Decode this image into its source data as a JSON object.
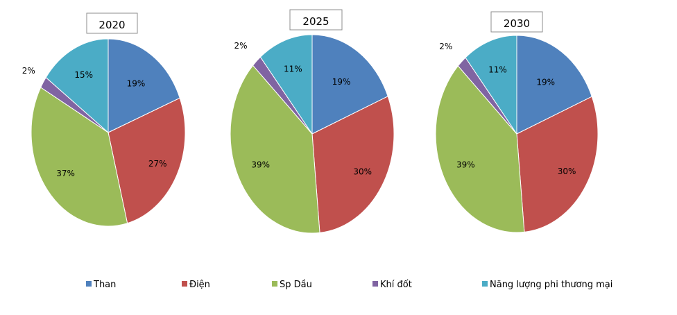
{
  "chart_data": {
    "type": "pie",
    "series": [
      {
        "name": "Than",
        "color": "#4F81BD"
      },
      {
        "name": "Điện",
        "color": "#C0504D"
      },
      {
        "name": "Sp Dầu",
        "color": "#9BBB59"
      },
      {
        "name": "Khí đốt",
        "color": "#8064A2"
      },
      {
        "name": "Năng lượng phi thương mại",
        "color": "#4BACC6"
      }
    ],
    "charts": [
      {
        "title": "2020",
        "values": [
          19,
          27,
          37,
          2,
          15
        ],
        "labels": [
          "19%",
          "27%",
          "37%",
          "2%",
          "15%"
        ]
      },
      {
        "title": "2025",
        "values": [
          19,
          30,
          39,
          2,
          11
        ],
        "labels": [
          "19%",
          "30%",
          "39%",
          "2%",
          "11%"
        ]
      },
      {
        "title": "2030",
        "values": [
          19,
          30,
          39,
          2,
          11
        ],
        "labels": [
          "19%",
          "30%",
          "39%",
          "2%",
          "11%"
        ]
      }
    ],
    "legend_position": "bottom"
  }
}
